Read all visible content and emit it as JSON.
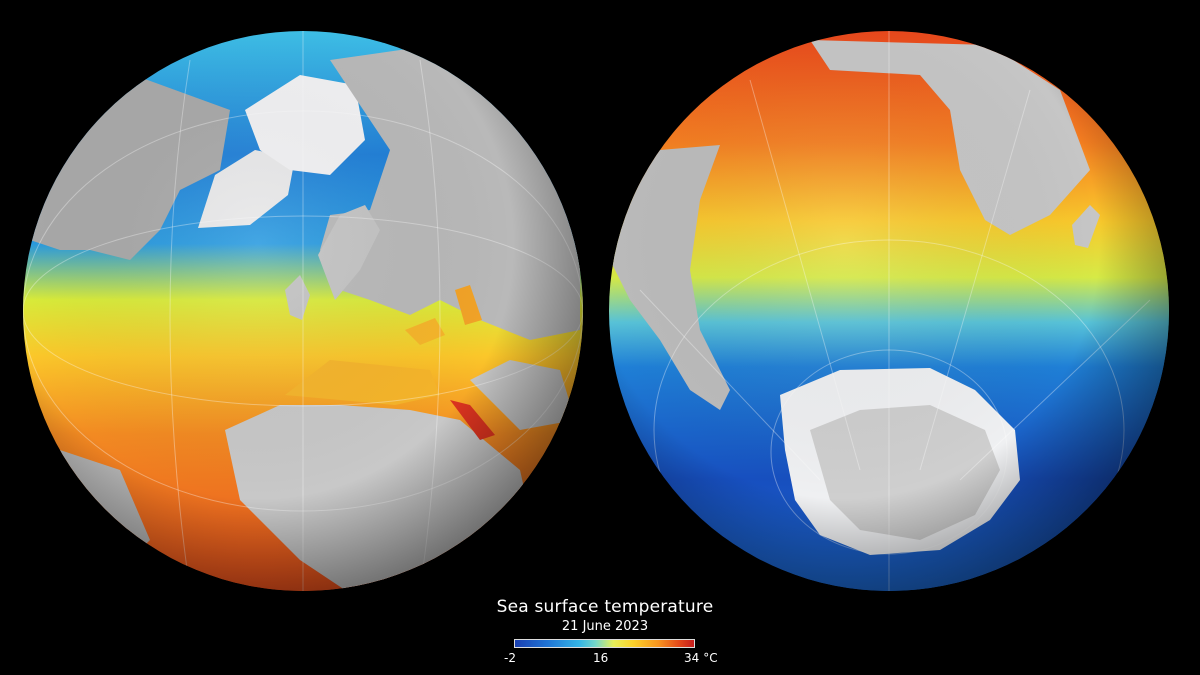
{
  "legend": {
    "title": "Sea surface temperature",
    "date": "21 June 2023",
    "tick_min": "-2",
    "tick_mid": "16",
    "tick_max": "34",
    "unit": "°C",
    "colors": [
      "#1a3fb0",
      "#1f74d6",
      "#35b6e6",
      "#74d6c8",
      "#e7f05a",
      "#fbd12a",
      "#f7951f",
      "#e3471a",
      "#c61d1d"
    ]
  },
  "globes": [
    {
      "hemisphere": "north",
      "view": "Arctic / North Atlantic / Europe"
    },
    {
      "hemisphere": "south",
      "view": "Antarctica / Southern Ocean"
    }
  ]
}
